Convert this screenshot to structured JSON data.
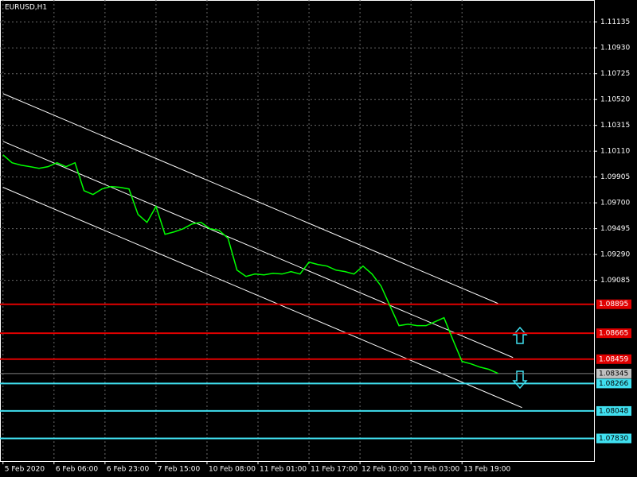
{
  "chart_data": {
    "type": "line",
    "title": "EURUSD,H1",
    "series": [
      {
        "name": "EURUSD",
        "color": "#00ff00",
        "x": [
          0,
          3,
          6,
          9,
          12,
          15,
          18,
          21,
          24,
          27,
          30,
          33,
          36,
          39,
          42,
          45,
          48,
          51,
          54,
          57,
          60,
          63,
          66,
          69,
          72,
          75,
          78,
          81,
          84,
          87,
          90,
          93,
          96,
          99,
          102,
          105,
          108,
          111,
          114,
          117,
          120,
          123,
          126,
          129,
          132,
          135,
          138,
          141,
          144,
          147,
          150,
          153,
          156,
          159,
          162,
          165
        ],
        "values": [
          1.10081,
          1.10018,
          1.09999,
          1.09987,
          1.09974,
          1.09987,
          1.10018,
          1.09987,
          1.10018,
          1.09797,
          1.09766,
          1.0981,
          1.09829,
          1.09823,
          1.0981,
          1.09608,
          1.09545,
          1.09671,
          1.0945,
          1.09469,
          1.09494,
          1.09532,
          1.09545,
          1.09494,
          1.09482,
          1.09419,
          1.09166,
          1.09116,
          1.09135,
          1.09128,
          1.09141,
          1.09135,
          1.09154,
          1.09135,
          1.09229,
          1.0921,
          1.09198,
          1.09166,
          1.09154,
          1.09135,
          1.09198,
          1.09135,
          1.0904,
          1.08882,
          1.08725,
          1.08737,
          1.08725,
          1.08725,
          1.08756,
          1.08788,
          1.08611,
          1.08441,
          1.08422,
          1.08396,
          1.08378,
          1.08346
        ]
      }
    ],
    "channel": [
      {
        "x": [
          0,
          165
        ],
        "y": [
          1.10567,
          1.08901
        ]
      },
      {
        "x": [
          0,
          170
        ],
        "y": [
          1.10188,
          1.08472
        ]
      },
      {
        "x": [
          0,
          173
        ],
        "y": [
          1.09823,
          1.08075
        ]
      }
    ],
    "levels": [
      {
        "price": 1.08895,
        "color": "#e00000"
      },
      {
        "price": 1.08665,
        "color": "#e00000"
      },
      {
        "price": 1.08459,
        "color": "#e00000"
      },
      {
        "price": 1.08345,
        "color": "#808080"
      },
      {
        "price": 1.08266,
        "color": "#40e0f0"
      },
      {
        "price": 1.08048,
        "color": "#40e0f0"
      },
      {
        "price": {
          "value": 1.0783,
          "label": "1.07830"
        },
        "color": "#40e0f0"
      }
    ],
    "xlim": [
      -1,
      197
    ],
    "ylim": [
      1.0765,
      1.1131
    ],
    "xticks": [
      {
        "value": 0,
        "label": "5 Feb 2020"
      },
      {
        "value": 17,
        "label": "6 Feb 06:00"
      },
      {
        "value": 34,
        "label": "6 Feb 23:00"
      },
      {
        "value": 51,
        "label": "7 Feb 15:00"
      },
      {
        "value": 68,
        "label": "10 Feb 08:00"
      },
      {
        "value": 85,
        "label": "11 Feb 01:00"
      },
      {
        "value": 102,
        "label": "11 Feb 17:00"
      },
      {
        "value": 119,
        "label": "12 Feb 10:00"
      },
      {
        "value": 136,
        "label": "13 Feb 03:00"
      },
      {
        "value": 153,
        "label": "13 Feb 19:00"
      }
    ],
    "yticks": [
      1.11135,
      {
        "value": 1.1093,
        "label": "1.10930"
      },
      1.10725,
      {
        "value": 1.1052,
        "label": "1.10520"
      },
      1.10315,
      {
        "value": 1.1011,
        "label": "1.10110"
      },
      1.09905,
      {
        "value": 1.097,
        "label": "1.09700"
      },
      1.09495,
      {
        "value": 1.0929,
        "label": "1.09290"
      },
      1.09085
    ],
    "grid": true
  }
}
